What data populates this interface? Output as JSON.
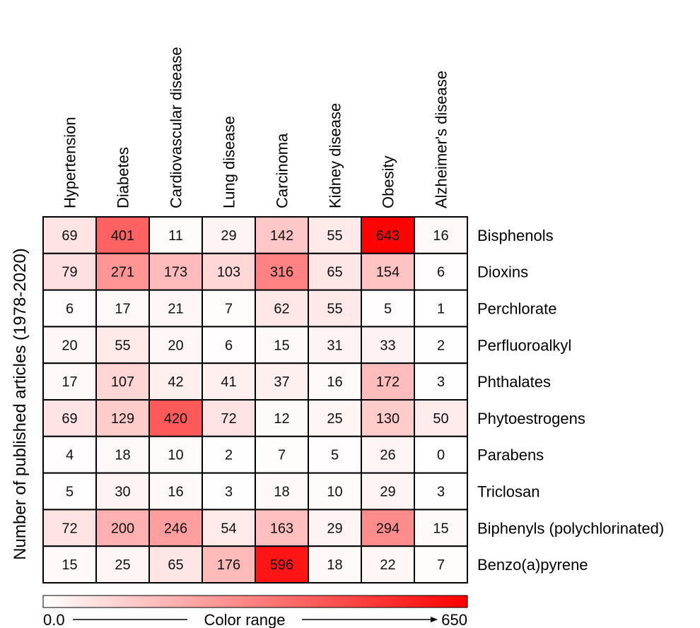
{
  "chart_data": {
    "type": "heatmap",
    "ylabel": "Number of published articles (1978-2020)",
    "columns": [
      "Hypertension",
      "Diabetes",
      "Cardiovascular disease",
      "Lung disease",
      "Carcinoma",
      "Kidney disease",
      "Obesity",
      "Alzheimer's disease"
    ],
    "rows": [
      "Bisphenols",
      "Dioxins",
      "Perchlorate",
      "Perfluoroalkyl",
      "Phthalates",
      "Phytoestrogens",
      "Parabens",
      "Triclosan",
      "Biphenyls (polychlorinated)",
      "Benzo(a)pyrene"
    ],
    "values": [
      [
        69,
        401,
        11,
        29,
        142,
        55,
        643,
        16
      ],
      [
        79,
        271,
        173,
        103,
        316,
        65,
        154,
        6
      ],
      [
        6,
        17,
        21,
        7,
        62,
        55,
        5,
        1
      ],
      [
        20,
        55,
        20,
        6,
        15,
        31,
        33,
        2
      ],
      [
        17,
        107,
        42,
        41,
        37,
        16,
        172,
        3
      ],
      [
        69,
        129,
        420,
        72,
        12,
        25,
        130,
        50
      ],
      [
        4,
        18,
        10,
        2,
        7,
        5,
        26,
        0
      ],
      [
        5,
        30,
        16,
        3,
        18,
        10,
        29,
        3
      ],
      [
        72,
        200,
        246,
        54,
        163,
        29,
        294,
        15
      ],
      [
        15,
        25,
        65,
        176,
        596,
        18,
        22,
        7
      ]
    ],
    "color_scale": {
      "min": 0.0,
      "max": 650,
      "low_color": "#ffffff",
      "high_color": "#ff0000"
    },
    "legend": {
      "min_label": "0.0",
      "max_label": "650",
      "title": "Color range"
    }
  }
}
